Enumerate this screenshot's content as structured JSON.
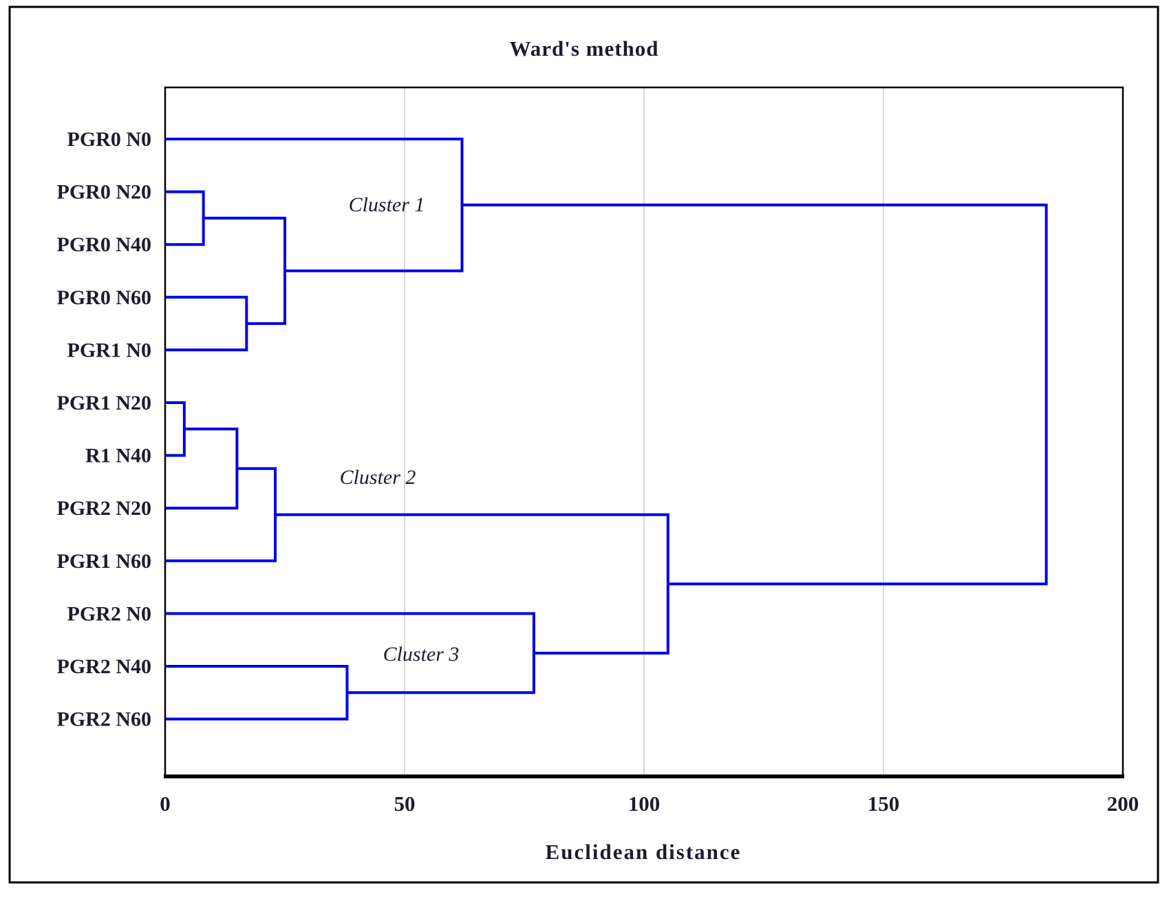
{
  "chart_data": {
    "type": "dendrogram",
    "title": "Ward's method",
    "orientation": "horizontal",
    "axis": {
      "label": "Euclidean distance",
      "range": [
        0,
        200
      ],
      "ticks": [
        0,
        50,
        100,
        150,
        200
      ],
      "grid": true,
      "gridline_values": [
        50,
        100,
        150
      ]
    },
    "leaves": [
      "PGR0 N0",
      "PGR0 N20",
      "PGR0 N40",
      "PGR0 N60",
      "PGR1 N0",
      "PGR1 N20",
      "R1 N40",
      "PGR2 N20",
      "PGR1 N60",
      "PGR2 N0",
      "PGR2 N40",
      "PGR2 N60"
    ],
    "merges": [
      {
        "id": "M1",
        "left": "PGR0 N20",
        "right": "PGR0 N40",
        "distance": 8
      },
      {
        "id": "M2",
        "left": "PGR0 N60",
        "right": "PGR1 N0",
        "distance": 17
      },
      {
        "id": "M3",
        "left": "M1",
        "right": "M2",
        "distance": 25
      },
      {
        "id": "M4",
        "left": "PGR0 N0",
        "right": "M3",
        "distance": 62
      },
      {
        "id": "M5",
        "left": "PGR1 N20",
        "right": "R1 N40",
        "distance": 4
      },
      {
        "id": "M6",
        "left": "M5",
        "right": "PGR2 N20",
        "distance": 15
      },
      {
        "id": "M7",
        "left": "M6",
        "right": "PGR1 N60",
        "distance": 23
      },
      {
        "id": "M8",
        "left": "PGR2 N40",
        "right": "PGR2 N60",
        "distance": 38
      },
      {
        "id": "M9",
        "left": "PGR2 N0",
        "right": "M8",
        "distance": 77
      },
      {
        "id": "M10",
        "left": "M7",
        "right": "M9",
        "distance": 105
      },
      {
        "id": "M11",
        "left": "M4",
        "right": "M10",
        "distance": 184
      }
    ],
    "annotations": [
      {
        "text": "Cluster 1"
      },
      {
        "text": "Cluster 2"
      },
      {
        "text": "Cluster 3"
      }
    ],
    "colors": {
      "link": "#0000e6",
      "grid": "#d8d8d8",
      "frame": "#000000",
      "border": "#000000",
      "text": "#1c1c2e",
      "background": "#ffffff"
    }
  }
}
